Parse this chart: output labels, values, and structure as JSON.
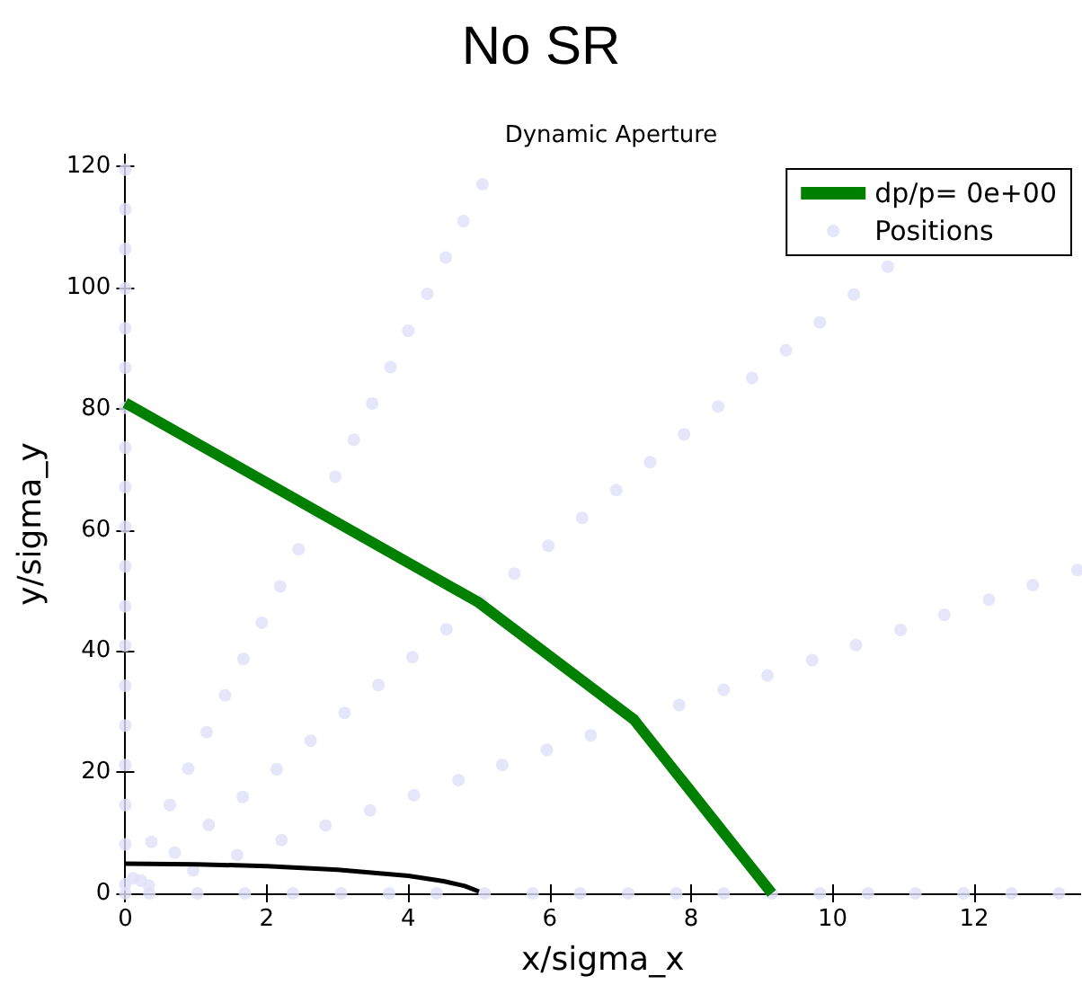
{
  "chart_data": {
    "type": "line",
    "title": "No SR",
    "subtitle": "Dynamic Aperture",
    "xlabel": "x/sigma_x",
    "ylabel": "y/sigma_y",
    "xlim": [
      0,
      13.5
    ],
    "ylim": [
      0,
      122
    ],
    "xticks": [
      0,
      2,
      4,
      6,
      8,
      10,
      12
    ],
    "yticks": [
      0,
      20,
      40,
      60,
      80,
      100,
      120
    ],
    "grid": false,
    "legend": "top right",
    "series": [
      {
        "name": "dp/p= 0e+00",
        "color": "#008000",
        "marker": "none",
        "line_style": "solid",
        "x": [
          0,
          5.0,
          7.19,
          9.14
        ],
        "values": [
          81,
          48,
          28.7,
          0
        ]
      },
      {
        "name": "Positions",
        "type": "scatter",
        "color": "#e0e0fa",
        "marker": "circle",
        "x": [
          0,
          0,
          0,
          0,
          0,
          0,
          0,
          0,
          0,
          0,
          0,
          0,
          0,
          0,
          0,
          0,
          0,
          0,
          0,
          0,
          0.11,
          0.37,
          0.63,
          0.89,
          1.15,
          1.41,
          1.67,
          1.93,
          2.19,
          2.45,
          2.71,
          2.97,
          3.23,
          3.49,
          3.75,
          4.0,
          4.27,
          4.53,
          4.78,
          5.05,
          0.22,
          0.7,
          1.18,
          1.66,
          2.14,
          2.62,
          3.1,
          3.58,
          4.06,
          4.54,
          5.02,
          5.5,
          5.98,
          6.46,
          6.94,
          7.42,
          7.9,
          8.38,
          8.86,
          9.34,
          9.82,
          10.3,
          10.78,
          0.33,
          0.96,
          1.58,
          2.21,
          2.83,
          3.46,
          4.08,
          4.71,
          5.33,
          5.96,
          6.58,
          7.21,
          7.83,
          8.46,
          9.08,
          9.71,
          10.33,
          10.96,
          11.58,
          12.21,
          12.83,
          13.46,
          0.34,
          1.02,
          1.69,
          2.37,
          3.05,
          3.73,
          4.4,
          5.08,
          5.76,
          6.43,
          7.11,
          7.79,
          8.46,
          9.14,
          9.82,
          10.5,
          11.17,
          11.85,
          12.53,
          13.2
        ],
        "values": [
          0,
          1.5,
          8.1,
          14.6,
          21.2,
          27.7,
          34.3,
          40.9,
          47.4,
          54,
          60.5,
          67.1,
          73.6,
          80.2,
          86.8,
          93.3,
          99.9,
          106.4,
          113,
          119.5,
          2.5,
          8.5,
          14.6,
          20.6,
          26.6,
          32.7,
          38.7,
          44.7,
          50.7,
          56.8,
          62.8,
          68.8,
          74.9,
          80.9,
          86.9,
          92.9,
          99,
          105,
          111,
          117.1,
          2.1,
          6.7,
          11.3,
          15.9,
          20.5,
          25.2,
          29.8,
          34.4,
          39,
          43.6,
          48.2,
          52.8,
          57.4,
          62,
          66.6,
          71.2,
          75.8,
          80.4,
          85.1,
          89.7,
          94.3,
          98.9,
          103.5,
          1.3,
          3.8,
          6.3,
          8.8,
          11.2,
          13.7,
          16.2,
          18.7,
          21.2,
          23.7,
          26.1,
          28.6,
          31.1,
          33.6,
          36,
          38.5,
          41,
          43.5,
          46,
          48.5,
          50.9,
          53.4,
          0,
          0,
          0,
          0,
          0,
          0,
          0,
          0,
          0,
          0,
          0,
          0,
          0,
          0,
          0,
          0,
          0,
          0,
          0,
          0
        ]
      },
      {
        "color": "#000000",
        "marker": "none",
        "line_style": "solid",
        "x": [
          0,
          1,
          2,
          3,
          4,
          4.5,
          4.8,
          5.0
        ],
        "values": [
          4.9,
          4.8,
          4.5,
          3.9,
          2.9,
          2.0,
          1.2,
          0.3
        ]
      }
    ]
  }
}
